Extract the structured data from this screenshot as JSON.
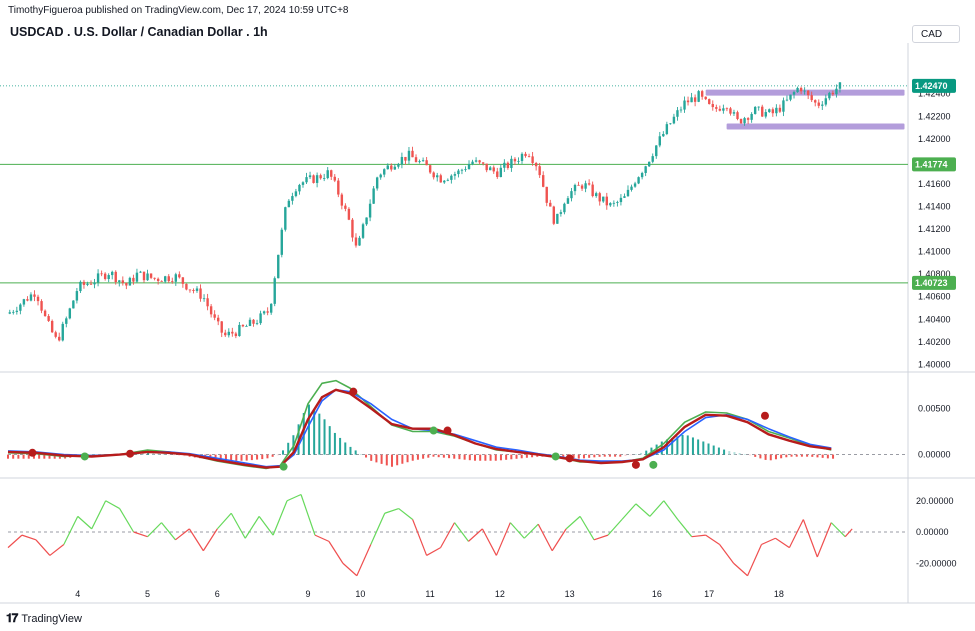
{
  "header": {
    "publisher": "TimothyFigueroa published on TradingView.com, Dec 17, 2024 10:59 UTC+8",
    "title": "USDCAD . U.S. Dollar / Canadian Dollar . 1h",
    "currency": "CAD"
  },
  "footer": {
    "logo_text": "TradingView"
  },
  "chart_data": [
    {
      "type": "candlestick",
      "panel": "price",
      "y_ticks": [
        "1.42400",
        "1.42200",
        "1.42000",
        "1.41600",
        "1.41400",
        "1.41200",
        "1.41000",
        "1.40800",
        "1.40600",
        "1.40400",
        "1.40200",
        "1.40000"
      ],
      "ylim": [
        1.3995,
        1.4285
      ],
      "price_labels": [
        {
          "value": 1.4247,
          "text": "1.42470",
          "color": "#089981"
        },
        {
          "value": 1.41774,
          "text": "1.41774",
          "color": "#4caf50"
        },
        {
          "value": 1.40723,
          "text": "1.40723",
          "color": "#4caf50"
        }
      ],
      "horizontal_lines": [
        1.41774,
        1.40723
      ],
      "zones": [
        {
          "x_start": 13.0,
          "x_end": 15.85,
          "price": 1.4241,
          "color": "#b39ddb"
        },
        {
          "x_start": 13.3,
          "x_end": 15.85,
          "price": 1.4211,
          "color": "#b39ddb"
        }
      ],
      "ohlc_path": [
        [
          3.0,
          1.4045
        ],
        [
          3.4,
          1.4065
        ],
        [
          3.55,
          1.4038
        ],
        [
          3.7,
          1.402
        ],
        [
          3.85,
          1.4042
        ],
        [
          4.0,
          1.4068
        ],
        [
          4.25,
          1.4075
        ],
        [
          4.45,
          1.4082
        ],
        [
          4.7,
          1.407
        ],
        [
          4.85,
          1.408
        ],
        [
          5.1,
          1.4076
        ],
        [
          5.4,
          1.4078
        ],
        [
          5.6,
          1.4068
        ],
        [
          5.8,
          1.406
        ],
        [
          5.95,
          1.404
        ],
        [
          6.1,
          1.4025
        ],
        [
          6.3,
          1.403
        ],
        [
          6.55,
          1.4038
        ],
        [
          6.75,
          1.4048
        ],
        [
          6.85,
          1.409
        ],
        [
          7.0,
          1.4145
        ],
        [
          7.15,
          1.416
        ],
        [
          7.4,
          1.4165
        ],
        [
          7.6,
          1.417
        ],
        [
          7.75,
          1.415
        ],
        [
          7.9,
          1.4125
        ],
        [
          8.0,
          1.41
        ],
        [
          8.15,
          1.4135
        ],
        [
          8.3,
          1.4168
        ],
        [
          8.55,
          1.418
        ],
        [
          8.75,
          1.4185
        ],
        [
          9.0,
          1.4175
        ],
        [
          9.2,
          1.4165
        ],
        [
          9.45,
          1.417
        ],
        [
          9.65,
          1.418
        ],
        [
          9.8,
          1.4176
        ],
        [
          10.0,
          1.417
        ],
        [
          10.25,
          1.418
        ],
        [
          10.45,
          1.419
        ],
        [
          10.6,
          1.4175
        ],
        [
          10.75,
          1.414
        ],
        [
          10.85,
          1.4125
        ],
        [
          11.0,
          1.415
        ],
        [
          11.25,
          1.416
        ],
        [
          11.45,
          1.4148
        ],
        [
          11.65,
          1.414
        ],
        [
          11.85,
          1.4148
        ],
        [
          12.0,
          1.4165
        ],
        [
          12.15,
          1.4178
        ],
        [
          12.3,
          1.4195
        ],
        [
          12.45,
          1.421
        ],
        [
          12.7,
          1.4232
        ],
        [
          12.9,
          1.4238
        ],
        [
          13.1,
          1.4225
        ],
        [
          13.3,
          1.4232
        ],
        [
          13.45,
          1.4215
        ],
        [
          13.7,
          1.4225
        ],
        [
          13.95,
          1.4222
        ],
        [
          14.15,
          1.4232
        ],
        [
          14.35,
          1.4247
        ],
        [
          14.45,
          1.4238
        ],
        [
          14.6,
          1.423
        ],
        [
          14.85,
          1.4244
        ],
        [
          14.95,
          1.4247
        ]
      ]
    },
    {
      "type": "line+histogram",
      "panel": "oscillator",
      "y_ticks": [
        "0.00500",
        "0.00000"
      ],
      "ylim": [
        -0.0022,
        0.0086
      ],
      "series": [
        {
          "color": "#4caf50",
          "values": [
            [
              3.0,
              0.0002
            ],
            [
              3.4,
              0.0001
            ],
            [
              3.8,
              -0.0002
            ],
            [
              4.2,
              -0.0001
            ],
            [
              4.6,
              0.0
            ],
            [
              5.0,
              0.0005
            ],
            [
              5.3,
              0.0003
            ],
            [
              5.6,
              0.0
            ],
            [
              6.0,
              -0.0007
            ],
            [
              6.4,
              -0.0012
            ],
            [
              6.7,
              -0.0015
            ],
            [
              6.9,
              -0.0012
            ],
            [
              7.1,
              0.001
            ],
            [
              7.3,
              0.0055
            ],
            [
              7.5,
              0.0077
            ],
            [
              7.7,
              0.008
            ],
            [
              7.9,
              0.0072
            ],
            [
              8.2,
              0.0052
            ],
            [
              8.5,
              0.0032
            ],
            [
              8.8,
              0.0025
            ],
            [
              9.1,
              0.0025
            ],
            [
              9.4,
              0.002
            ],
            [
              9.7,
              0.0012
            ],
            [
              10.0,
              0.0005
            ],
            [
              10.3,
              0.0003
            ],
            [
              10.6,
              0.0
            ],
            [
              10.9,
              -0.0003
            ],
            [
              11.2,
              -0.0008
            ],
            [
              11.5,
              -0.0008
            ],
            [
              11.8,
              -0.0008
            ],
            [
              12.1,
              -0.0004
            ],
            [
              12.4,
              0.0012
            ],
            [
              12.7,
              0.0035
            ],
            [
              13.0,
              0.0046
            ],
            [
              13.3,
              0.0045
            ],
            [
              13.6,
              0.0038
            ],
            [
              13.9,
              0.0025
            ],
            [
              14.2,
              0.0018
            ],
            [
              14.5,
              0.001
            ],
            [
              14.8,
              0.0005
            ]
          ]
        },
        {
          "color": "#2962ff",
          "values": [
            [
              3.0,
              0.0004
            ],
            [
              3.4,
              0.0003
            ],
            [
              3.8,
              0.0
            ],
            [
              4.2,
              -0.0001
            ],
            [
              4.6,
              0.0
            ],
            [
              5.0,
              0.0003
            ],
            [
              5.3,
              0.0003
            ],
            [
              5.6,
              0.0001
            ],
            [
              6.0,
              -0.0004
            ],
            [
              6.4,
              -0.0009
            ],
            [
              6.7,
              -0.0013
            ],
            [
              6.9,
              -0.0012
            ],
            [
              7.1,
              0.0
            ],
            [
              7.3,
              0.003
            ],
            [
              7.5,
              0.0058
            ],
            [
              7.7,
              0.007
            ],
            [
              7.9,
              0.0068
            ],
            [
              8.2,
              0.0055
            ],
            [
              8.5,
              0.0038
            ],
            [
              8.8,
              0.0028
            ],
            [
              9.1,
              0.0026
            ],
            [
              9.4,
              0.0022
            ],
            [
              9.7,
              0.0015
            ],
            [
              10.0,
              0.0008
            ],
            [
              10.3,
              0.0005
            ],
            [
              10.6,
              0.0001
            ],
            [
              10.9,
              -0.0002
            ],
            [
              11.2,
              -0.0006
            ],
            [
              11.5,
              -0.0007
            ],
            [
              11.8,
              -0.0007
            ],
            [
              12.1,
              -0.0005
            ],
            [
              12.4,
              0.0005
            ],
            [
              12.7,
              0.0025
            ],
            [
              13.0,
              0.004
            ],
            [
              13.3,
              0.0043
            ],
            [
              13.6,
              0.0038
            ],
            [
              13.9,
              0.0028
            ],
            [
              14.2,
              0.0019
            ],
            [
              14.5,
              0.0011
            ],
            [
              14.8,
              0.0007
            ]
          ]
        },
        {
          "color": "#b71c1c",
          "values": [
            [
              3.0,
              0.0003
            ],
            [
              3.4,
              0.0002
            ],
            [
              3.8,
              -0.0001
            ],
            [
              4.2,
              -0.0002
            ],
            [
              4.6,
              0.0
            ],
            [
              5.0,
              0.0003
            ],
            [
              5.3,
              0.0002
            ],
            [
              5.6,
              0.0
            ],
            [
              6.0,
              -0.0006
            ],
            [
              6.4,
              -0.0011
            ],
            [
              6.7,
              -0.0014
            ],
            [
              6.9,
              -0.0013
            ],
            [
              7.1,
              0.0003
            ],
            [
              7.3,
              0.0038
            ],
            [
              7.5,
              0.0062
            ],
            [
              7.7,
              0.007
            ],
            [
              7.9,
              0.0066
            ],
            [
              8.2,
              0.005
            ],
            [
              8.5,
              0.0033
            ],
            [
              8.8,
              0.0028
            ],
            [
              9.1,
              0.0028
            ],
            [
              9.4,
              0.0021
            ],
            [
              9.7,
              0.0012
            ],
            [
              10.0,
              0.0006
            ],
            [
              10.3,
              0.0003
            ],
            [
              10.6,
              0.0
            ],
            [
              10.9,
              -0.0003
            ],
            [
              11.2,
              -0.0007
            ],
            [
              11.5,
              -0.0009
            ],
            [
              11.8,
              -0.0008
            ],
            [
              12.1,
              -0.0005
            ],
            [
              12.4,
              0.0008
            ],
            [
              12.7,
              0.003
            ],
            [
              13.0,
              0.0043
            ],
            [
              13.3,
              0.0042
            ],
            [
              13.6,
              0.0035
            ],
            [
              13.9,
              0.0022
            ],
            [
              14.2,
              0.0015
            ],
            [
              14.5,
              0.0009
            ],
            [
              14.8,
              0.0006
            ]
          ]
        }
      ],
      "markers": [
        {
          "x": 3.35,
          "value": 0.0002,
          "color": "#b71c1c"
        },
        {
          "x": 4.1,
          "value": -0.0002,
          "color": "#4caf50"
        },
        {
          "x": 4.75,
          "value": 0.0001,
          "color": "#b71c1c"
        },
        {
          "x": 6.95,
          "value": -0.0013,
          "color": "#4caf50"
        },
        {
          "x": 7.95,
          "value": 0.0068,
          "color": "#b71c1c"
        },
        {
          "x": 9.1,
          "value": 0.0026,
          "color": "#4caf50"
        },
        {
          "x": 9.3,
          "value": 0.0026,
          "color": "#b71c1c"
        },
        {
          "x": 10.85,
          "value": -0.0002,
          "color": "#4caf50"
        },
        {
          "x": 11.05,
          "value": -0.0004,
          "color": "#b71c1c"
        },
        {
          "x": 12.0,
          "value": -0.0011,
          "color": "#b71c1c"
        },
        {
          "x": 12.25,
          "value": -0.0011,
          "color": "#4caf50"
        },
        {
          "x": 13.85,
          "value": 0.0042,
          "color": "#b71c1c"
        }
      ]
    },
    {
      "type": "line",
      "panel": "momentum",
      "y_ticks": [
        "20.00000",
        "0.00000",
        "-20.00000"
      ],
      "ylim": [
        -32,
        32
      ],
      "up_color": "#66d95b",
      "down_color": "#ef4f4f",
      "values": [
        [
          3.0,
          -10
        ],
        [
          3.2,
          -2
        ],
        [
          3.4,
          -5
        ],
        [
          3.6,
          -15
        ],
        [
          3.8,
          -8
        ],
        [
          4.0,
          10
        ],
        [
          4.2,
          2
        ],
        [
          4.4,
          20
        ],
        [
          4.6,
          15
        ],
        [
          4.8,
          0
        ],
        [
          5.0,
          -3
        ],
        [
          5.2,
          6
        ],
        [
          5.4,
          -5
        ],
        [
          5.6,
          2
        ],
        [
          5.8,
          -12
        ],
        [
          6.0,
          2
        ],
        [
          6.2,
          12
        ],
        [
          6.4,
          -4
        ],
        [
          6.6,
          10
        ],
        [
          6.8,
          -2
        ],
        [
          7.0,
          20
        ],
        [
          7.2,
          24
        ],
        [
          7.4,
          -2
        ],
        [
          7.6,
          -6
        ],
        [
          7.8,
          -20
        ],
        [
          8.0,
          -28
        ],
        [
          8.2,
          -8
        ],
        [
          8.4,
          12
        ],
        [
          8.6,
          15
        ],
        [
          8.8,
          8
        ],
        [
          9.0,
          -15
        ],
        [
          9.2,
          -10
        ],
        [
          9.4,
          6
        ],
        [
          9.6,
          -6
        ],
        [
          9.8,
          2
        ],
        [
          10.0,
          -15
        ],
        [
          10.2,
          6
        ],
        [
          10.4,
          -4
        ],
        [
          10.6,
          5
        ],
        [
          10.8,
          -12
        ],
        [
          11.0,
          2
        ],
        [
          11.2,
          10
        ],
        [
          11.4,
          -5
        ],
        [
          11.6,
          -2
        ],
        [
          11.8,
          8
        ],
        [
          12.0,
          18
        ],
        [
          12.2,
          10
        ],
        [
          12.4,
          20
        ],
        [
          12.6,
          8
        ],
        [
          12.8,
          -3
        ],
        [
          13.0,
          -2
        ],
        [
          13.2,
          -8
        ],
        [
          13.4,
          -20
        ],
        [
          13.6,
          -28
        ],
        [
          13.8,
          -8
        ],
        [
          14.0,
          -4
        ],
        [
          14.2,
          -10
        ],
        [
          14.4,
          8
        ],
        [
          14.6,
          -16
        ],
        [
          14.8,
          6
        ],
        [
          15.0,
          -3
        ],
        [
          15.1,
          2
        ]
      ],
      "zero_line": 0
    }
  ],
  "x_axis": {
    "labels": [
      {
        "label": "4",
        "x": 4
      },
      {
        "label": "5",
        "x": 5
      },
      {
        "label": "6",
        "x": 6
      },
      {
        "label": "9",
        "x": 7.3
      },
      {
        "label": "10",
        "x": 8.05
      },
      {
        "label": "11",
        "x": 9.05
      },
      {
        "label": "12",
        "x": 10.05
      },
      {
        "label": "13",
        "x": 11.05
      },
      {
        "label": "16",
        "x": 12.3
      },
      {
        "label": "17",
        "x": 13.05
      },
      {
        "label": "18",
        "x": 14.05
      }
    ]
  },
  "colors": {
    "up": "#26a69a",
    "down": "#ef5350",
    "grid": "#e0e3eb",
    "axis_text": "#131722"
  }
}
